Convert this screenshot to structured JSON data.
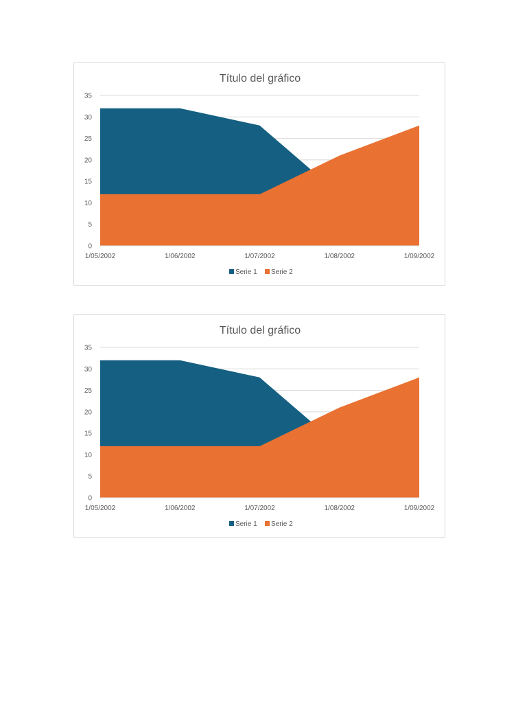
{
  "chart_data": [
    {
      "type": "area",
      "title": "Título del gráfico",
      "categories": [
        "1/05/2002",
        "1/06/2002",
        "1/07/2002",
        "1/08/2002",
        "1/09/2002"
      ],
      "series": [
        {
          "name": "Serie 1",
          "values": [
            32,
            32,
            28,
            12,
            15
          ],
          "color": "#156082"
        },
        {
          "name": "Serie 2",
          "values": [
            12,
            12,
            12,
            21,
            28
          ],
          "color": "#E97132"
        }
      ],
      "ylim": [
        0,
        35
      ],
      "yticks": [
        0,
        5,
        10,
        15,
        20,
        25,
        30,
        35
      ],
      "grid": true,
      "legend": "bottom"
    },
    {
      "type": "area",
      "title": "Título del gráfico",
      "categories": [
        "1/05/2002",
        "1/06/2002",
        "1/07/2002",
        "1/08/2002",
        "1/09/2002"
      ],
      "series": [
        {
          "name": "Serie 1",
          "values": [
            32,
            32,
            28,
            12,
            15
          ],
          "color": "#156082"
        },
        {
          "name": "Serie 2",
          "values": [
            12,
            12,
            12,
            21,
            28
          ],
          "color": "#E97132"
        }
      ],
      "ylim": [
        0,
        35
      ],
      "yticks": [
        0,
        5,
        10,
        15,
        20,
        25,
        30,
        35
      ],
      "grid": true,
      "legend": "bottom"
    }
  ]
}
